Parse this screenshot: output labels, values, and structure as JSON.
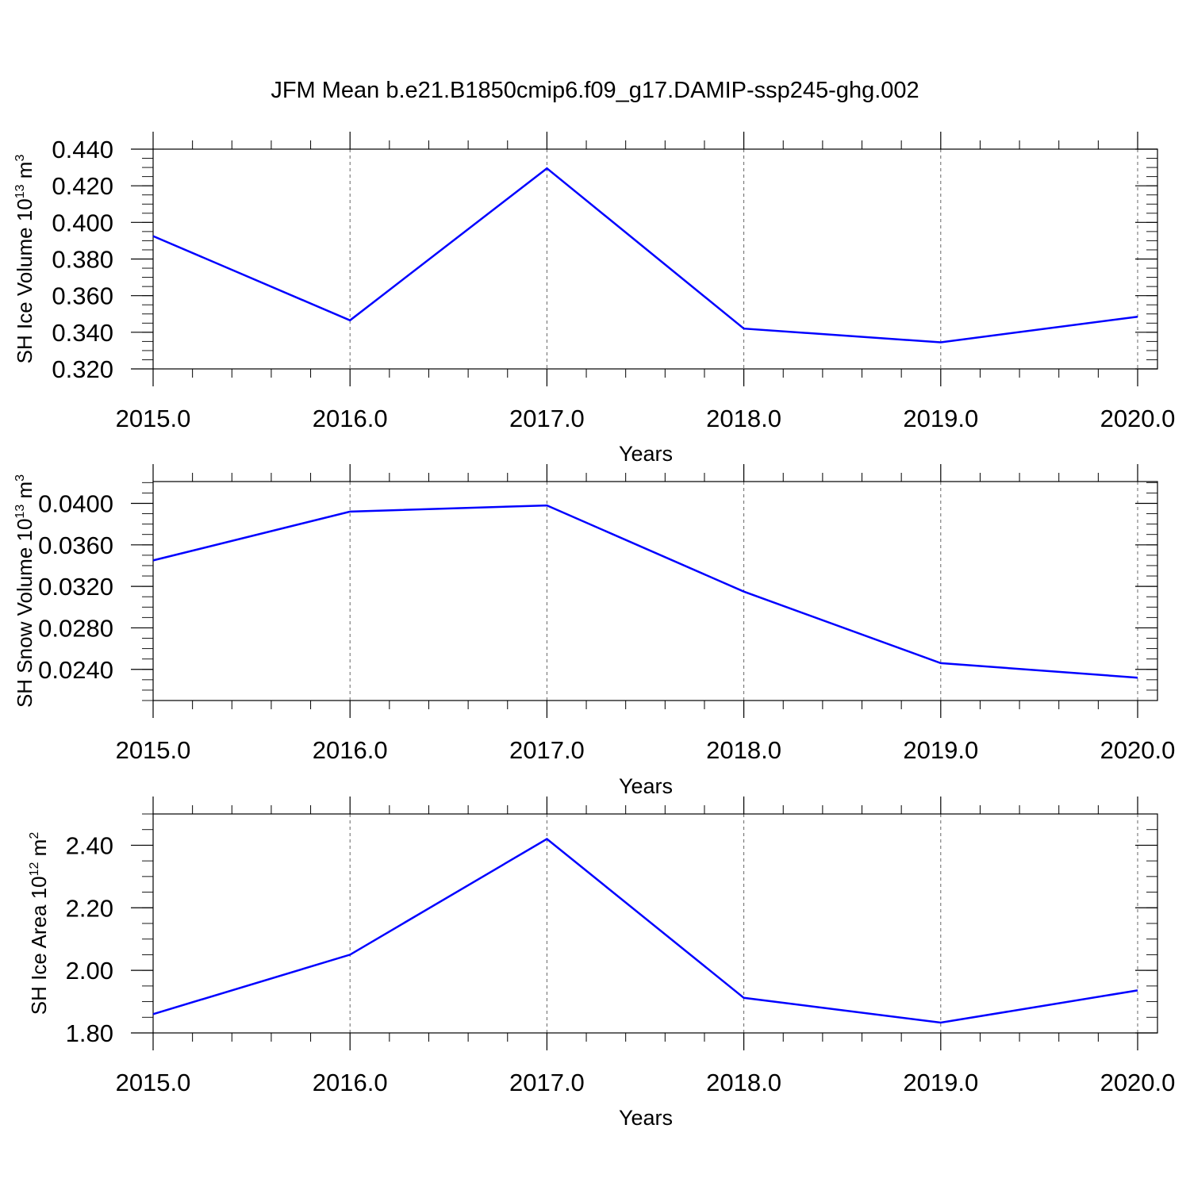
{
  "title": "JFM Mean b.e21.B1850cmip6.f09_g17.DAMIP-ssp245-ghg.002",
  "colors": {
    "series": "#0000ff",
    "axis": "#000000",
    "grid": "#000000"
  },
  "chart_data": [
    {
      "type": "line",
      "xlabel": "Years",
      "ylabel": {
        "text": "SH Ice Volume 10",
        "exp": "13",
        "unit": " m",
        "unit_exp": "3"
      },
      "x": [
        2015,
        2016,
        2017,
        2018,
        2019,
        2020
      ],
      "xticks": [
        "2015.0",
        "2016.0",
        "2017.0",
        "2018.0",
        "2019.0",
        "2020.0"
      ],
      "yticks": [
        "0.320",
        "0.340",
        "0.360",
        "0.380",
        "0.400",
        "0.420",
        "0.440"
      ],
      "ytick_values": [
        0.32,
        0.34,
        0.36,
        0.38,
        0.4,
        0.42,
        0.44
      ],
      "ylim": [
        0.32,
        0.44
      ],
      "xlim": [
        2015,
        2020.1
      ],
      "values": [
        0.3925,
        0.3465,
        0.4295,
        0.342,
        0.3345,
        0.3485
      ],
      "grid": "vertical dashed"
    },
    {
      "type": "line",
      "xlabel": "Years",
      "ylabel": {
        "text": "SH Snow Volume 10",
        "exp": "13",
        "unit": " m",
        "unit_exp": "3"
      },
      "x": [
        2015,
        2016,
        2017,
        2018,
        2019,
        2020
      ],
      "xticks": [
        "2015.0",
        "2016.0",
        "2017.0",
        "2018.0",
        "2019.0",
        "2020.0"
      ],
      "yticks": [
        "0.0240",
        "0.0280",
        "0.0320",
        "0.0360",
        "0.0400"
      ],
      "ytick_values": [
        0.024,
        0.028,
        0.032,
        0.036,
        0.04
      ],
      "ylim": [
        0.021,
        0.0421
      ],
      "xlim": [
        2015,
        2020.1
      ],
      "values": [
        0.0345,
        0.0392,
        0.0398,
        0.0315,
        0.0246,
        0.0232
      ],
      "grid": "vertical dashed"
    },
    {
      "type": "line",
      "xlabel": "Years",
      "ylabel": {
        "text": "SH Ice Area 10",
        "exp": "12",
        "unit": " m",
        "unit_exp": "2"
      },
      "x": [
        2015,
        2016,
        2017,
        2018,
        2019,
        2020
      ],
      "xticks": [
        "2015.0",
        "2016.0",
        "2017.0",
        "2018.0",
        "2019.0",
        "2020.0"
      ],
      "yticks": [
        "1.80",
        "2.00",
        "2.20",
        "2.40"
      ],
      "ytick_values": [
        1.8,
        2.0,
        2.2,
        2.4
      ],
      "ylim": [
        1.8,
        2.5
      ],
      "xlim": [
        2015,
        2020.1
      ],
      "values": [
        1.86,
        2.05,
        2.42,
        1.912,
        1.833,
        1.936
      ],
      "grid": "vertical dashed"
    }
  ]
}
